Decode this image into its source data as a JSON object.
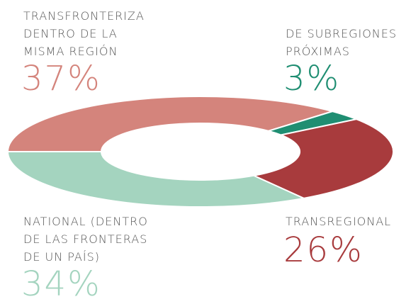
{
  "chart_data": {
    "type": "pie",
    "categories": [
      "TRANSFRONTERIZA\nDENTRO DE LA\nMISMA REGIÓN",
      "DE SUBREGIONES\nPRÓXIMAS",
      "TRANSREGIONAL",
      "NATIONAL (DENTRO\nDE LAS FRONTERAS\nDE UN PAÍS)"
    ],
    "values": [
      37,
      3,
      26,
      34
    ],
    "value_labels": [
      "37%",
      "3%",
      "26%",
      "34%"
    ],
    "colors": [
      "#d4847c",
      "#1f8e72",
      "#a83b3d",
      "#a4d4bf"
    ]
  }
}
